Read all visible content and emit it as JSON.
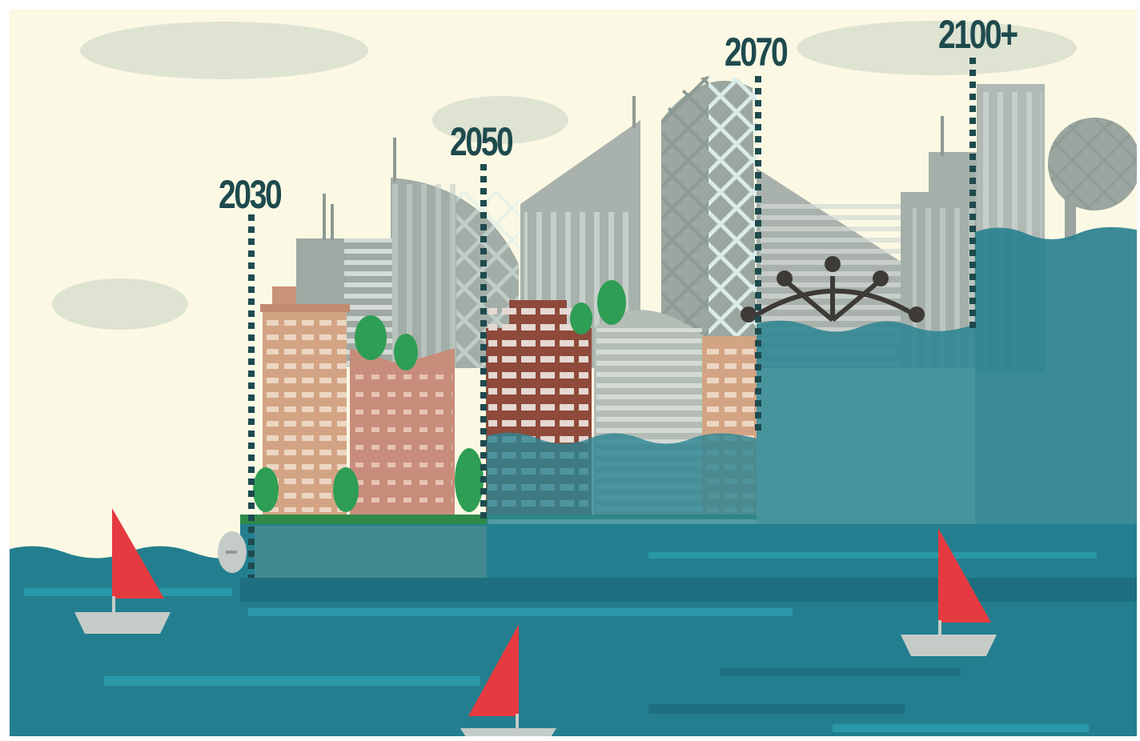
{
  "scene": {
    "colors": {
      "sky": "#fbf9e4",
      "cloud": "#dfe3d2",
      "sea": "#237f8f",
      "sea_dark": "#1d6f7f",
      "sea_stripe": "#2a98a8",
      "flood": "#2d8593",
      "marker": "#1e4a4e",
      "sail": "#e53a40",
      "hull": "#c5ccc8",
      "tree": "#2e9e54",
      "brick": "#8e4a3a",
      "tan": "#d3a484",
      "pink": "#c88d7a",
      "gray": "#9aa59f",
      "gray_light": "#bcc4bd"
    },
    "timeline": [
      {
        "year": "2030"
      },
      {
        "year": "2050"
      },
      {
        "year": "2070"
      },
      {
        "year": "2100+"
      }
    ]
  }
}
